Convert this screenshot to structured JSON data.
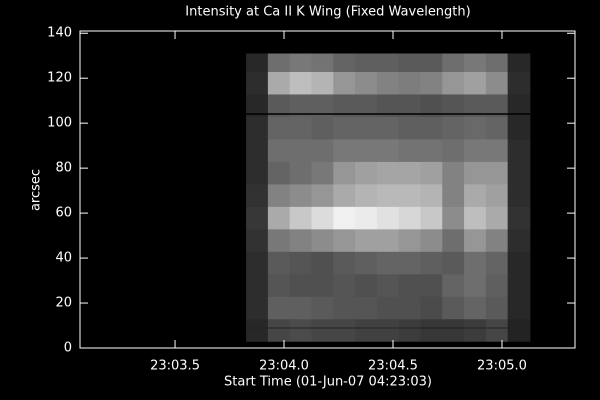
{
  "chart_data": {
    "type": "heatmap",
    "title": "Intensity at Ca II K Wing (Fixed Wavelength)",
    "x_label": "Start Time (01-Jun-07 04:23:03)",
    "y_label": "arcsec",
    "xlim": [
      3.064,
      5.335
    ],
    "ylim": [
      0,
      141
    ],
    "xticks": [
      {
        "value": 3.5,
        "label": "23:03.5"
      },
      {
        "value": 4.0,
        "label": "23:04.0"
      },
      {
        "value": 4.5,
        "label": "23:04.5"
      },
      {
        "value": 5.0,
        "label": "23:05.0"
      }
    ],
    "yticks": [
      0,
      20,
      40,
      60,
      80,
      100,
      120,
      140
    ],
    "x_edges": [
      3.826,
      3.926,
      4.026,
      4.126,
      4.226,
      4.326,
      4.426,
      4.526,
      4.626,
      4.726,
      4.826,
      4.926,
      5.026,
      5.128
    ],
    "y_edges": [
      3,
      13,
      23,
      33,
      43,
      53,
      63,
      73,
      83,
      93,
      103,
      113,
      123,
      131
    ],
    "z": [
      [
        40,
        70,
        75,
        70,
        70,
        65,
        65,
        60,
        55,
        55,
        60,
        70,
        35
      ],
      [
        45,
        95,
        95,
        90,
        85,
        85,
        80,
        80,
        75,
        90,
        100,
        90,
        40
      ],
      [
        45,
        85,
        80,
        80,
        85,
        80,
        85,
        80,
        80,
        100,
        110,
        95,
        40
      ],
      [
        45,
        90,
        85,
        80,
        90,
        95,
        100,
        100,
        95,
        90,
        110,
        100,
        40
      ],
      [
        50,
        120,
        130,
        140,
        150,
        160,
        160,
        150,
        140,
        110,
        150,
        130,
        45
      ],
      [
        55,
        170,
        200,
        220,
        240,
        235,
        225,
        215,
        200,
        140,
        190,
        170,
        50
      ],
      [
        50,
        130,
        140,
        150,
        170,
        180,
        185,
        185,
        180,
        130,
        170,
        160,
        45
      ],
      [
        45,
        100,
        110,
        120,
        150,
        160,
        165,
        165,
        160,
        130,
        150,
        150,
        45
      ],
      [
        45,
        110,
        110,
        110,
        120,
        120,
        120,
        115,
        115,
        110,
        120,
        120,
        45
      ],
      [
        45,
        100,
        100,
        95,
        100,
        100,
        100,
        95,
        95,
        100,
        105,
        100,
        40
      ],
      [
        40,
        90,
        95,
        95,
        90,
        90,
        85,
        85,
        80,
        85,
        90,
        90,
        40
      ],
      [
        45,
        170,
        190,
        180,
        150,
        140,
        130,
        125,
        130,
        150,
        160,
        140,
        45
      ],
      [
        40,
        110,
        120,
        115,
        100,
        95,
        95,
        90,
        90,
        110,
        120,
        110,
        40
      ]
    ]
  }
}
